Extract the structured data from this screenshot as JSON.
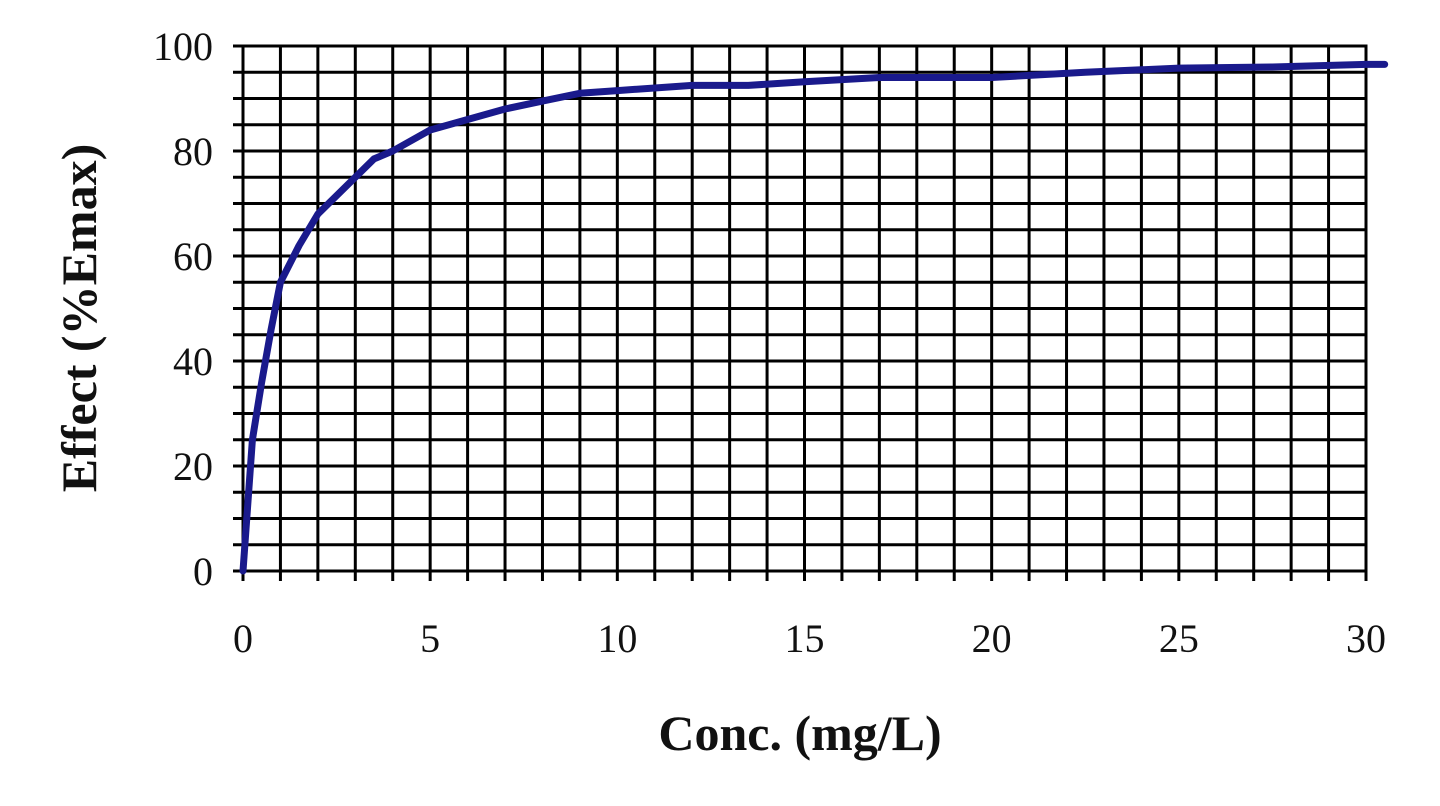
{
  "chart_data": {
    "type": "line",
    "title": "",
    "xlabel": "Conc. (mg/L)",
    "ylabel": "Effect (%Emax)",
    "xlim": [
      0,
      30
    ],
    "ylim": [
      0,
      100
    ],
    "x_ticks": [
      0,
      5,
      10,
      15,
      20,
      25,
      30
    ],
    "y_ticks": [
      0,
      20,
      40,
      60,
      80,
      100
    ],
    "x_tick_labels": [
      "0",
      "5",
      "10",
      "15",
      "20",
      "25",
      "30"
    ],
    "y_tick_labels": [
      "0",
      "20",
      "40",
      "60",
      "80",
      "100"
    ],
    "x_minor_step": 1,
    "y_minor_step": 5,
    "highlighted_x_gridline": 15,
    "grid": true,
    "legend": "none",
    "line_color": "#1a1a8c",
    "series": [
      {
        "x": [
          0,
          0.25,
          0.5,
          0.75,
          1,
          1.5,
          2,
          3,
          3.5,
          4,
          5,
          6,
          7,
          8,
          9,
          10,
          12,
          13.5,
          15,
          17,
          20,
          22.5,
          25,
          27.5,
          30,
          30.5
        ],
        "y": [
          0,
          25,
          36,
          46,
          55,
          62,
          68,
          75,
          78.5,
          80,
          84,
          86,
          88,
          89.5,
          91,
          91.5,
          92.5,
          92.5,
          93.2,
          94,
          94,
          95,
          95.8,
          96,
          96.5,
          96.5
        ]
      }
    ]
  }
}
